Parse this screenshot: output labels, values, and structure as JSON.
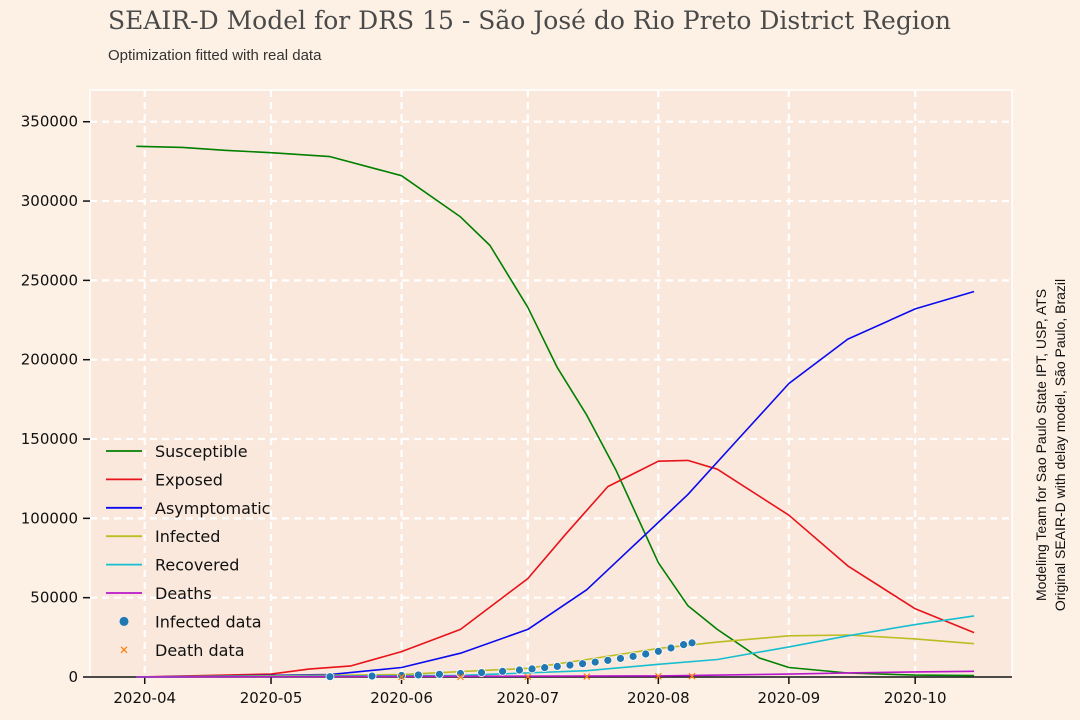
{
  "chart_data": {
    "type": "line",
    "title": "SEAIR-D Model for DRS 15 - São José do Rio Preto District Region",
    "subtitle": "Optimization fitted with real data",
    "xlabel": "",
    "ylabel": "",
    "xlim": [
      "2020-03-19",
      "2020-10-24"
    ],
    "ylim": [
      0,
      370000
    ],
    "x_ticks": [
      "2020-04",
      "2020-05",
      "2020-06",
      "2020-07",
      "2020-08",
      "2020-09",
      "2020-10"
    ],
    "y_ticks": [
      0,
      50000,
      100000,
      150000,
      200000,
      250000,
      300000,
      350000
    ],
    "grid": true,
    "legend_position": "lower-left",
    "credits": [
      "Modeling Team for Sao Paulo State IPT, USP, ATS",
      "Original SEAIR-D with delay model, São Paulo, Brazil"
    ],
    "series": [
      {
        "name": "Susceptible",
        "color": "#008000",
        "style": "line",
        "points": [
          [
            "2020-03-30",
            334500
          ],
          [
            "2020-04-10",
            333800
          ],
          [
            "2020-04-20",
            332000
          ],
          [
            "2020-05-01",
            330500
          ],
          [
            "2020-05-15",
            328000
          ],
          [
            "2020-06-01",
            316000
          ],
          [
            "2020-06-15",
            290000
          ],
          [
            "2020-06-22",
            272000
          ],
          [
            "2020-07-01",
            233000
          ],
          [
            "2020-07-08",
            195000
          ],
          [
            "2020-07-15",
            165000
          ],
          [
            "2020-07-22",
            130000
          ],
          [
            "2020-08-01",
            72000
          ],
          [
            "2020-08-08",
            45000
          ],
          [
            "2020-08-15",
            30000
          ],
          [
            "2020-08-25",
            12000
          ],
          [
            "2020-09-01",
            6000
          ],
          [
            "2020-09-15",
            2500
          ],
          [
            "2020-10-01",
            1200
          ],
          [
            "2020-10-15",
            900
          ]
        ]
      },
      {
        "name": "Exposed",
        "color": "#e8131a",
        "style": "line",
        "points": [
          [
            "2020-03-30",
            0
          ],
          [
            "2020-05-01",
            1800
          ],
          [
            "2020-05-10",
            5000
          ],
          [
            "2020-05-20",
            7000
          ],
          [
            "2020-06-01",
            16000
          ],
          [
            "2020-06-15",
            30000
          ],
          [
            "2020-07-01",
            62000
          ],
          [
            "2020-07-10",
            90000
          ],
          [
            "2020-07-20",
            120000
          ],
          [
            "2020-08-01",
            136000
          ],
          [
            "2020-08-08",
            136500
          ],
          [
            "2020-08-15",
            131000
          ],
          [
            "2020-09-01",
            102000
          ],
          [
            "2020-09-15",
            70000
          ],
          [
            "2020-10-01",
            43000
          ],
          [
            "2020-10-15",
            28000
          ]
        ]
      },
      {
        "name": "Asymptomatic",
        "color": "#0a0aef",
        "style": "line",
        "points": [
          [
            "2020-03-30",
            0
          ],
          [
            "2020-05-15",
            1500
          ],
          [
            "2020-06-01",
            6000
          ],
          [
            "2020-06-15",
            15000
          ],
          [
            "2020-07-01",
            30000
          ],
          [
            "2020-07-15",
            55000
          ],
          [
            "2020-07-25",
            80000
          ],
          [
            "2020-08-08",
            115000
          ],
          [
            "2020-08-20",
            150000
          ],
          [
            "2020-09-01",
            185000
          ],
          [
            "2020-09-15",
            213000
          ],
          [
            "2020-10-01",
            232000
          ],
          [
            "2020-10-15",
            243000
          ]
        ]
      },
      {
        "name": "Infected",
        "color": "#bcbd22",
        "style": "line",
        "points": [
          [
            "2020-03-30",
            0
          ],
          [
            "2020-06-01",
            1500
          ],
          [
            "2020-07-01",
            5500
          ],
          [
            "2020-07-15",
            11000
          ],
          [
            "2020-08-01",
            18000
          ],
          [
            "2020-08-15",
            22000
          ],
          [
            "2020-09-01",
            26000
          ],
          [
            "2020-09-15",
            26500
          ],
          [
            "2020-10-01",
            24000
          ],
          [
            "2020-10-15",
            21000
          ]
        ]
      },
      {
        "name": "Recovered",
        "color": "#17becf",
        "style": "line",
        "points": [
          [
            "2020-03-30",
            0
          ],
          [
            "2020-06-15",
            1000
          ],
          [
            "2020-07-15",
            4000
          ],
          [
            "2020-08-01",
            8000
          ],
          [
            "2020-08-15",
            11000
          ],
          [
            "2020-09-01",
            19000
          ],
          [
            "2020-09-15",
            26000
          ],
          [
            "2020-10-01",
            33000
          ],
          [
            "2020-10-15",
            38500
          ]
        ]
      },
      {
        "name": "Deaths",
        "color": "#b718c9",
        "style": "line",
        "points": [
          [
            "2020-03-30",
            0
          ],
          [
            "2020-08-01",
            700
          ],
          [
            "2020-09-01",
            1800
          ],
          [
            "2020-09-15",
            2600
          ],
          [
            "2020-10-01",
            3200
          ],
          [
            "2020-10-15",
            3600
          ]
        ]
      },
      {
        "name": "Infected data",
        "color": "#1f77b4",
        "style": "scatter",
        "points": [
          [
            "2020-05-15",
            200
          ],
          [
            "2020-05-25",
            600
          ],
          [
            "2020-06-01",
            1000
          ],
          [
            "2020-06-05",
            1300
          ],
          [
            "2020-06-10",
            1700
          ],
          [
            "2020-06-15",
            2200
          ],
          [
            "2020-06-20",
            2800
          ],
          [
            "2020-06-25",
            3600
          ],
          [
            "2020-06-29",
            4400
          ],
          [
            "2020-07-02",
            5100
          ],
          [
            "2020-07-05",
            5900
          ],
          [
            "2020-07-08",
            6700
          ],
          [
            "2020-07-11",
            7500
          ],
          [
            "2020-07-14",
            8400
          ],
          [
            "2020-07-17",
            9400
          ],
          [
            "2020-07-20",
            10500
          ],
          [
            "2020-07-23",
            11700
          ],
          [
            "2020-07-26",
            13000
          ],
          [
            "2020-07-29",
            14500
          ],
          [
            "2020-08-01",
            16200
          ],
          [
            "2020-08-04",
            18300
          ],
          [
            "2020-08-07",
            20400
          ],
          [
            "2020-08-09",
            21500
          ]
        ]
      },
      {
        "name": "Death data",
        "color": "#ff7f0e",
        "style": "x",
        "points": [
          [
            "2020-06-01",
            20
          ],
          [
            "2020-06-15",
            60
          ],
          [
            "2020-07-01",
            150
          ],
          [
            "2020-07-15",
            280
          ],
          [
            "2020-08-01",
            450
          ],
          [
            "2020-08-09",
            520
          ]
        ]
      }
    ]
  }
}
